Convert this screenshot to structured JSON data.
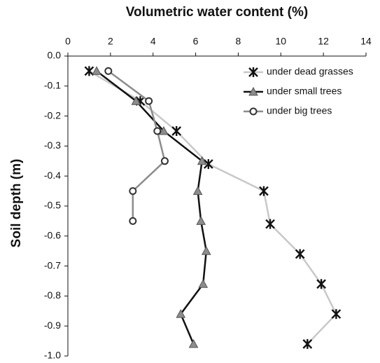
{
  "chart_data": {
    "type": "line",
    "title": "Volumetric water content (%)",
    "y_label": "Soil depth (m)",
    "xlim": [
      0,
      14
    ],
    "xticks": [
      0,
      2,
      4,
      6,
      8,
      10,
      12,
      14
    ],
    "ylim": [
      -1.0,
      0.0
    ],
    "yticks": [
      {
        "value": 0.0,
        "label": "0.0"
      },
      -0.1,
      -0.2,
      -0.3,
      -0.4,
      -0.5,
      -0.6,
      -0.7,
      -0.8,
      -0.9,
      {
        "value": -1.0,
        "label": "-1.0"
      }
    ],
    "legend": "upper right",
    "series": [
      {
        "name": "under dead grasses",
        "color": "#c8c8c8",
        "marker": "star",
        "marker_color": "#111111",
        "x": [
          1.0,
          3.4,
          5.1,
          6.6,
          9.2,
          9.5,
          10.9,
          11.9,
          12.6,
          11.25
        ],
        "values": [
          -0.05,
          -0.15,
          -0.25,
          -0.36,
          -0.45,
          -0.56,
          -0.66,
          -0.76,
          -0.86,
          -0.96
        ]
      },
      {
        "name": "under small trees",
        "color": "#111111",
        "marker": "triangle",
        "marker_color": "#8c8c8c",
        "x": [
          1.35,
          3.2,
          4.5,
          6.3,
          6.1,
          6.25,
          6.5,
          6.35,
          5.3,
          5.9
        ],
        "values": [
          -0.05,
          -0.15,
          -0.25,
          -0.35,
          -0.45,
          -0.55,
          -0.65,
          -0.76,
          -0.86,
          -0.96
        ]
      },
      {
        "name": "under big trees",
        "color": "#8c8c8c",
        "marker": "circle",
        "marker_color": "#333333",
        "x": [
          1.9,
          3.8,
          4.2,
          4.55,
          3.05,
          3.05
        ],
        "values": [
          -0.05,
          -0.15,
          -0.25,
          -0.35,
          -0.45,
          -0.55
        ]
      }
    ]
  }
}
